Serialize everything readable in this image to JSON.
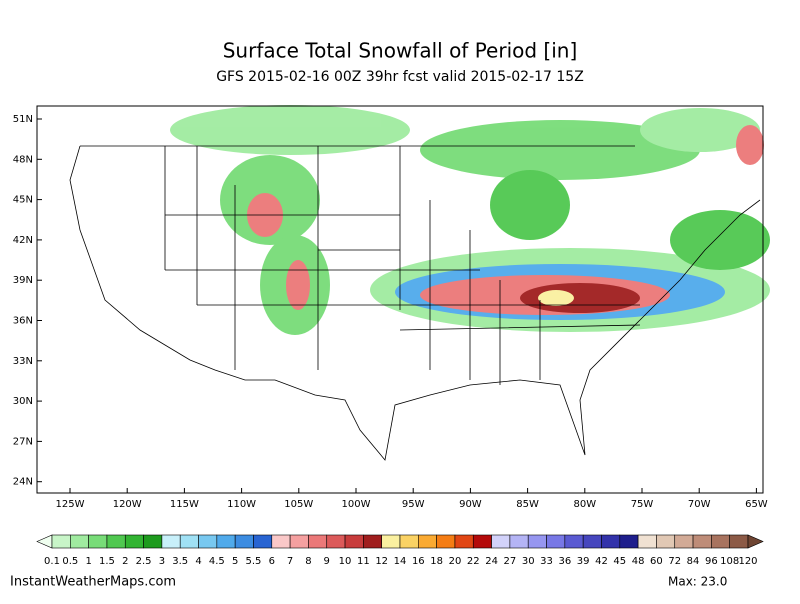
{
  "header": {
    "title": "Surface Total Snowfall of Period [in]",
    "subtitle": "GFS 2015-02-16 00Z 39hr fcst valid 2015-02-17 15Z"
  },
  "map": {
    "lat_labels": [
      "51N",
      "48N",
      "45N",
      "42N",
      "39N",
      "36N",
      "33N",
      "30N",
      "27N",
      "24N"
    ],
    "lon_labels": [
      "125W",
      "120W",
      "115W",
      "110W",
      "105W",
      "100W",
      "95W",
      "90W",
      "85W",
      "80W",
      "75W",
      "70W",
      "65W"
    ]
  },
  "colorbar": {
    "labels": [
      0.1,
      0.5,
      1,
      1.5,
      2,
      2.5,
      3,
      3.5,
      4,
      4.5,
      5,
      5.5,
      6,
      7,
      8,
      9,
      10,
      11,
      12,
      14,
      16,
      18,
      20,
      22,
      24,
      27,
      30,
      33,
      36,
      39,
      42,
      45,
      48,
      60,
      72,
      84,
      96,
      108,
      120
    ],
    "colors": [
      "#f0fff0",
      "#c8f5c8",
      "#a0eba0",
      "#78dc78",
      "#50c850",
      "#32b432",
      "#1e9b1e",
      "#c8f0fa",
      "#a0e1f5",
      "#78c8f0",
      "#50aaeb",
      "#3c8ce1",
      "#2864d2",
      "#fac8c8",
      "#f5a0a0",
      "#eb7878",
      "#dc5a5a",
      "#c83c3c",
      "#a01e1e",
      "#faf0a0",
      "#fad264",
      "#faaa32",
      "#f57d14",
      "#e14614",
      "#b40a0a",
      "#d2d2fa",
      "#b4b4f5",
      "#9696f0",
      "#7878e6",
      "#5a5ad2",
      "#4646be",
      "#3232aa",
      "#1e1e8c",
      "#f0e1d2",
      "#e1c8b4",
      "#d2aa96",
      "#be8c78",
      "#a8735f",
      "#8c5a46",
      "#6e4432"
    ]
  },
  "footer": {
    "source": "InstantWeatherMaps.com",
    "max": "Max:  23.0"
  }
}
